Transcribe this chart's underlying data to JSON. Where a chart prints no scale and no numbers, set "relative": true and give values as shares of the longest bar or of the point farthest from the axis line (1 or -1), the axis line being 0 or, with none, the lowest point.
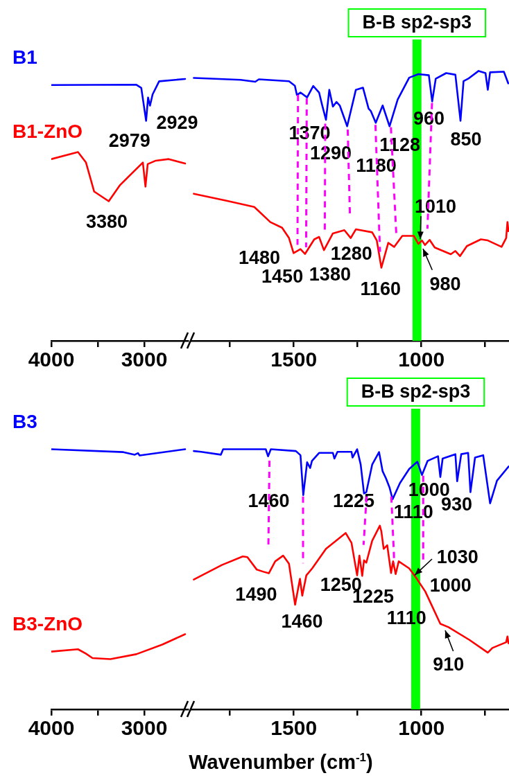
{
  "chart_data": [
    {
      "type": "line",
      "relative": true,
      "xlim": [
        4000,
        2530
      ],
      "xticks": [
        4000,
        {
          "value": 3500,
          "label": null
        },
        3000
      ],
      "series": [
        {
          "name": "B1",
          "color": "#0000ff",
          "x": [
            4000,
            3085,
            3032,
            2980,
            2959,
            2938,
            2910,
            2840,
            2560
          ],
          "values": [
            0.977,
            0.978,
            0.966,
            0.84,
            0.929,
            0.898,
            0.941,
            0.991,
            1
          ]
        },
        {
          "name": "B1-ZnO",
          "color": "#ff0000",
          "x": [
            4000,
            3713,
            3627,
            3539,
            3382,
            3260,
            3015,
            2987,
            2963,
            2876,
            2736,
            2560
          ],
          "values": [
            0.694,
            0.721,
            0.681,
            0.57,
            0.533,
            0.595,
            0.681,
            0.589,
            0.675,
            0.688,
            0.694,
            0.677
          ]
        }
      ],
      "annotations": [
        {
          "text": "2979",
          "x": 2979,
          "y": 0.84
        },
        {
          "text": "2929",
          "x": 2929,
          "y": 0.898
        },
        {
          "text": "3380",
          "x": 3380,
          "y": 0.533
        }
      ]
    },
    {
      "type": "line",
      "relative": true,
      "xlim": [
        1900,
        655
      ],
      "xticks": [
        {
          "value": 1750,
          "label": null
        },
        1500,
        {
          "value": 1250,
          "label": null
        },
        1000,
        {
          "value": 750,
          "label": null
        }
      ],
      "series": [
        {
          "color": "#0000ff",
          "x": [
            1892,
            1709,
            1651,
            1637,
            1519,
            1496,
            1488,
            1474,
            1448,
            1424,
            1401,
            1390,
            1374,
            1361,
            1347,
            1333,
            1320,
            1291,
            1257,
            1229,
            1207,
            1198,
            1179,
            1152,
            1125,
            1093,
            1048,
            1012,
            971,
            958,
            944,
            903,
            867,
            847,
            835,
            817,
            776,
            749,
            740,
            731,
            677,
            660
          ],
          "values": [
            0.974,
            0.967,
            0.96,
            0.969,
            0.962,
            0.945,
            0.911,
            0.92,
            0.902,
            0.944,
            0.92,
            0.877,
            0.819,
            0.93,
            0.868,
            0.885,
            0.872,
            0.795,
            0.93,
            0.938,
            0.86,
            0.851,
            0.808,
            0.872,
            0.795,
            0.894,
            0.975,
            0.988,
            0.984,
            0.887,
            0.971,
            0.992,
            0.986,
            0.815,
            0.962,
            0.971,
            1,
            0.992,
            0.93,
            0.995,
            0.997,
            0.954
          ]
        },
        {
          "color": "#ff0000",
          "x": [
            1892,
            1764,
            1655,
            1592,
            1546,
            1519,
            1501,
            1474,
            1456,
            1420,
            1401,
            1382,
            1347,
            1302,
            1277,
            1257,
            1193,
            1175,
            1157,
            1130,
            1107,
            1075,
            1030,
            1012,
            998,
            986,
            968,
            948,
            885,
            867,
            849,
            822,
            767,
            740,
            686,
            668,
            663,
            659
          ],
          "values": [
            0.545,
            0.519,
            0.496,
            0.44,
            0.419,
            0.381,
            0.325,
            0.34,
            0.322,
            0.376,
            0.385,
            0.336,
            0.398,
            0.41,
            0.381,
            0.413,
            0.402,
            0.372,
            0.271,
            0.363,
            0.348,
            0.389,
            0.389,
            0.359,
            0.372,
            0.355,
            0.374,
            0.346,
            0.321,
            0.333,
            0.314,
            0.351,
            0.376,
            0.372,
            0.348,
            0.381,
            0.44,
            0.406
          ]
        }
      ],
      "bands": [
        {
          "axis": "x",
          "from": 1035,
          "to": 1000,
          "label": "B-B sp2-sp3",
          "color": "#00ff00"
        }
      ],
      "annotations": [
        {
          "text": "1370",
          "x": 1370,
          "y": 0.819
        },
        {
          "text": "1290",
          "x": 1290,
          "y": 0.795
        },
        {
          "text": "1180",
          "x": 1180,
          "y": 0.808
        },
        {
          "text": "1128",
          "x": 1128,
          "y": 0.795
        },
        {
          "text": "960",
          "x": 960,
          "y": 0.887
        },
        {
          "text": "850",
          "x": 850,
          "y": 0.815
        },
        {
          "text": "1480",
          "x": 1480,
          "y": 0.335
        },
        {
          "text": "1450",
          "x": 1450,
          "y": 0.322
        },
        {
          "text": "1380",
          "x": 1380,
          "y": 0.336
        },
        {
          "text": "1280",
          "x": 1280,
          "y": 0.381
        },
        {
          "text": "1160",
          "x": 1160,
          "y": 0.271
        },
        {
          "text": "1010",
          "x": 1010,
          "y": 0.359
        },
        {
          "text": "980",
          "x": 980,
          "y": 0.355
        }
      ]
    },
    {
      "type": "line",
      "relative": true,
      "xlim": [
        4000,
        2530
      ],
      "xticks": [
        4000,
        {
          "value": 3500,
          "label": null
        },
        3000
      ],
      "series": [
        {
          "name": "B3",
          "color": "#0000ff",
          "x": [
            4000,
            3225,
            3102,
            3067,
            3050,
            2560
          ],
          "values": [
            1,
            0.989,
            0.979,
            0.985,
            0.976,
            1
          ]
        },
        {
          "name": "B3-ZnO",
          "color": "#ff0000",
          "x": [
            4000,
            3713,
            3627,
            3557,
            3364,
            3085,
            2806,
            2560
          ],
          "values": [
            0.222,
            0.231,
            0.214,
            0.197,
            0.193,
            0.212,
            0.249,
            0.289
          ]
        }
      ]
    },
    {
      "type": "line",
      "relative": true,
      "xlim": [
        1900,
        655
      ],
      "xticks": [
        {
          "value": 1750,
          "label": null
        },
        1500,
        {
          "value": 1250,
          "label": null
        },
        1000,
        {
          "value": 750,
          "label": null
        }
      ],
      "xlabel": "Wavenumber (cm$^{-1}$)",
      "series": [
        {
          "color": "#0000ff",
          "x": [
            1892,
            1863,
            1786,
            1777,
            1610,
            1601,
            1590,
            1492,
            1474,
            1463,
            1448,
            1436,
            1429,
            1401,
            1347,
            1341,
            1329,
            1274,
            1270,
            1252,
            1238,
            1225,
            1216,
            1193,
            1166,
            1152,
            1139,
            1125,
            1113,
            1084,
            1048,
            1016,
            998,
            976,
            935,
            926,
            917,
            867,
            860,
            844,
            817,
            808,
            790,
            758,
            731,
            704,
            658
          ],
          "values": [
            0.993,
            0.99,
            0.979,
            1,
            1,
            0.973,
            1,
            0.993,
            0.977,
            0.824,
            0.95,
            0.928,
            0.955,
            0.986,
            0.986,
            0.964,
            0.99,
            0.99,
            0.968,
            1,
            0.941,
            0.83,
            0.835,
            0.941,
            0.989,
            0.915,
            0.888,
            0.853,
            0.808,
            0.87,
            0.924,
            0.952,
            0.901,
            0.955,
            0.973,
            0.893,
            0.964,
            0.981,
            0.877,
            0.981,
            0.986,
            0.835,
            0.968,
            0.977,
            0.792,
            0.879,
            0.934
          ]
        },
        {
          "color": "#ff0000",
          "x": [
            1892,
            1782,
            1700,
            1682,
            1645,
            1619,
            1598,
            1573,
            1542,
            1519,
            1495,
            1476,
            1467,
            1451,
            1428,
            1374,
            1297,
            1274,
            1252,
            1243,
            1232,
            1225,
            1216,
            1193,
            1163,
            1157,
            1148,
            1134,
            1119,
            1111,
            1101,
            1089,
            1048,
            1021,
            985,
            926,
            894,
            812,
            740,
            722,
            668,
            663,
            659
          ],
          "values": [
            0.499,
            0.555,
            0.588,
            0.585,
            0.537,
            0.529,
            0.523,
            0.569,
            0.591,
            0.56,
            0.402,
            0.502,
            0.437,
            0.515,
            0.542,
            0.617,
            0.678,
            0.64,
            0.515,
            0.591,
            0.513,
            0.573,
            0.564,
            0.648,
            0.706,
            0.684,
            0.617,
            0.631,
            0.524,
            0.569,
            0.52,
            0.569,
            0.542,
            0.506,
            0.453,
            0.329,
            0.316,
            0.267,
            0.218,
            0.236,
            0.258,
            0.28,
            0.254
          ]
        }
      ],
      "bands": [
        {
          "axis": "x",
          "from": 1040,
          "to": 1005,
          "label": "B-B sp2-sp3",
          "color": "#00ff00"
        }
      ],
      "annotations": [
        {
          "text": "1460",
          "x": 1460,
          "y": 0.824
        },
        {
          "text": "1225",
          "x": 1225,
          "y": 0.83
        },
        {
          "text": "1110",
          "x": 1110,
          "y": 0.808
        },
        {
          "text": "1000",
          "x": 1000,
          "y": 0.901
        },
        {
          "text": "930",
          "x": 930,
          "y": 0.893
        },
        {
          "text": "1490",
          "x": 1490,
          "y": 0.402
        },
        {
          "text": "1460",
          "x": 1460,
          "y": 0.437
        },
        {
          "text": "1250",
          "x": 1250,
          "y": 0.515
        },
        {
          "text": "1225",
          "x": 1225,
          "y": 0.513
        },
        {
          "text": "1110",
          "x": 1110,
          "y": 0.52
        },
        {
          "text": "1030",
          "x": 1030,
          "y": 0.52
        },
        {
          "text": "1000",
          "x": 1000,
          "y": 0.47
        },
        {
          "text": "910",
          "x": 910,
          "y": 0.32
        }
      ]
    }
  ]
}
